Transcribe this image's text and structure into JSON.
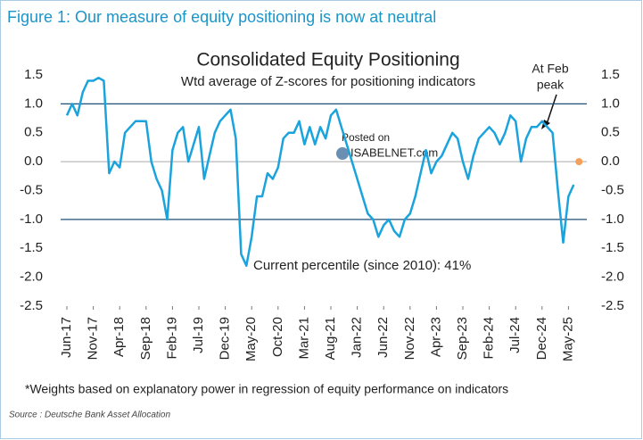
{
  "chart_data": {
    "type": "line",
    "header": "Figure 1: Our measure of equity positioning is now at neutral",
    "title": "Consolidated Equity Positioning",
    "subtitle": "Wtd average of Z-scores for positioning indicators",
    "annotations": {
      "peak": [
        "At Feb",
        "peak"
      ],
      "percentile": "Current percentile (since 2010): 41%",
      "watermark": [
        "Posted on",
        "ISABELNET.com"
      ]
    },
    "footnote": "*Weights based on explanatory power in regression of equity performance on indicators",
    "source": "Source : Deutsche Bank Asset Allocation",
    "color": "#1aa3dc",
    "x": [
      "2017-06",
      "2017-07",
      "2017-08",
      "2017-09",
      "2017-10",
      "2017-11",
      "2017-12",
      "2018-01",
      "2018-02",
      "2018-03",
      "2018-04",
      "2018-05",
      "2018-06",
      "2018-07",
      "2018-08",
      "2018-09",
      "2018-10",
      "2018-11",
      "2018-12",
      "2019-01",
      "2019-02",
      "2019-03",
      "2019-04",
      "2019-05",
      "2019-06",
      "2019-07",
      "2019-08",
      "2019-09",
      "2019-10",
      "2019-11",
      "2019-12",
      "2020-01",
      "2020-02",
      "2020-03",
      "2020-04",
      "2020-05",
      "2020-06",
      "2020-07",
      "2020-08",
      "2020-09",
      "2020-10",
      "2020-11",
      "2020-12",
      "2021-01",
      "2021-02",
      "2021-03",
      "2021-04",
      "2021-05",
      "2021-06",
      "2021-07",
      "2021-08",
      "2021-09",
      "2021-10",
      "2021-11",
      "2021-12",
      "2022-01",
      "2022-02",
      "2022-03",
      "2022-04",
      "2022-05",
      "2022-06",
      "2022-07",
      "2022-08",
      "2022-09",
      "2022-10",
      "2022-11",
      "2022-12",
      "2023-01",
      "2023-02",
      "2023-03",
      "2023-04",
      "2023-05",
      "2023-06",
      "2023-07",
      "2023-08",
      "2023-09",
      "2023-10",
      "2023-11",
      "2023-12",
      "2024-01",
      "2024-02",
      "2024-03",
      "2024-04",
      "2024-05",
      "2024-06",
      "2024-07",
      "2024-08",
      "2024-09",
      "2024-10",
      "2024-11",
      "2024-12",
      "2025-01",
      "2025-02",
      "2025-03",
      "2025-04",
      "2025-05",
      "2025-06"
    ],
    "values": [
      0.8,
      1.0,
      0.8,
      1.2,
      1.4,
      1.4,
      1.45,
      1.4,
      -0.2,
      0.0,
      -0.1,
      0.5,
      0.6,
      0.7,
      0.7,
      0.7,
      0.0,
      -0.3,
      -0.5,
      -1.0,
      0.2,
      0.5,
      0.6,
      0.0,
      0.3,
      0.6,
      -0.3,
      0.1,
      0.5,
      0.7,
      0.8,
      0.9,
      0.4,
      -1.6,
      -1.8,
      -1.3,
      -0.6,
      -0.6,
      -0.2,
      -0.3,
      -0.1,
      0.4,
      0.5,
      0.5,
      0.7,
      0.3,
      0.6,
      0.3,
      0.6,
      0.4,
      0.8,
      0.9,
      0.6,
      0.3,
      0.0,
      -0.3,
      -0.6,
      -0.9,
      -1.0,
      -1.3,
      -1.1,
      -1.0,
      -1.2,
      -1.3,
      -1.0,
      -0.9,
      -0.6,
      -0.2,
      0.2,
      -0.2,
      0.0,
      0.1,
      0.3,
      0.5,
      0.4,
      0.0,
      -0.3,
      0.1,
      0.4,
      0.5,
      0.6,
      0.5,
      0.3,
      0.5,
      0.8,
      0.7,
      0.0,
      0.4,
      0.6,
      0.6,
      0.7,
      0.6,
      0.5,
      -0.5,
      -1.4,
      -0.6,
      -0.4
    ],
    "current_point": {
      "x": "2025-07",
      "value": 0,
      "color": "#f5a05a"
    },
    "reference_lines": [
      {
        "value": 1,
        "color": "#1f4e79"
      },
      {
        "value": 0,
        "color": "#aaaaaa"
      },
      {
        "value": -1,
        "color": "#1f4e79"
      }
    ],
    "xticks": [
      {
        "value": "2017-06",
        "label": "Jun-17"
      },
      {
        "value": "2017-11",
        "label": "Nov-17"
      },
      {
        "value": "2018-04",
        "label": "Apr-18"
      },
      {
        "value": "2018-09",
        "label": "Sep-18"
      },
      {
        "value": "2019-02",
        "label": "Feb-19"
      },
      {
        "value": "2019-07",
        "label": "Jul-19"
      },
      {
        "value": "2019-12",
        "label": "Dec-19"
      },
      {
        "value": "2020-05",
        "label": "May-20"
      },
      {
        "value": "2020-10",
        "label": "Oct-20"
      },
      {
        "value": "2021-03",
        "label": "Mar-21"
      },
      {
        "value": "2021-08",
        "label": "Aug-21"
      },
      {
        "value": "2022-01",
        "label": "Jan-22"
      },
      {
        "value": "2022-06",
        "label": "Jun-22"
      },
      {
        "value": "2022-11",
        "label": "Nov-22"
      },
      {
        "value": "2023-04",
        "label": "Apr-23"
      },
      {
        "value": "2023-09",
        "label": "Sep-23"
      },
      {
        "value": "2024-02",
        "label": "Feb-24"
      },
      {
        "value": "2024-07",
        "label": "Jul-24"
      },
      {
        "value": "2024-12",
        "label": "Dec-24"
      },
      {
        "value": "2025-05",
        "label": "May-25"
      }
    ],
    "ylim": [
      -2.5,
      1.5
    ],
    "yticks": [
      1.5,
      {
        "value": 1,
        "label": "1.0"
      },
      0.5,
      {
        "value": 0,
        "label": "0.0"
      },
      -0.5,
      {
        "value": -1,
        "label": "-1.0"
      },
      -1.5,
      {
        "value": -2,
        "label": "-2.0"
      },
      -2.5
    ],
    "y2lim": [
      -2.5,
      1.5
    ],
    "y2ticks": [
      1.5,
      {
        "value": 1,
        "label": "1.0"
      },
      0.5,
      {
        "value": 0,
        "label": "0.0"
      },
      -0.5,
      {
        "value": -1,
        "label": "-1.0"
      },
      -1.5,
      {
        "value": -2,
        "label": "-2.0"
      },
      -2.5
    ]
  }
}
